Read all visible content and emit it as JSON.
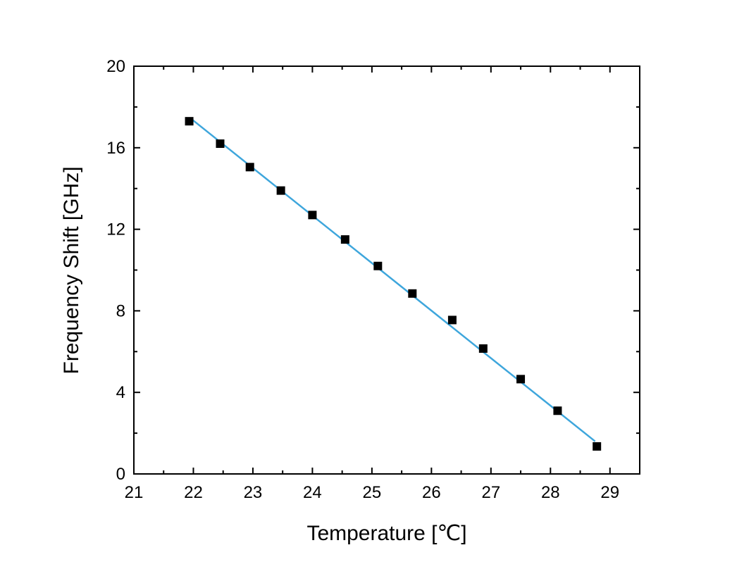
{
  "chart_data": {
    "type": "scatter",
    "title": "",
    "xlabel": "Temperature [℃]",
    "ylabel": "Frequency Shift [GHz]",
    "xlim": [
      21,
      29.5
    ],
    "ylim": [
      0,
      20
    ],
    "xticks": [
      21,
      22,
      23,
      24,
      25,
      26,
      27,
      28,
      29
    ],
    "yticks": [
      0,
      4,
      8,
      12,
      16,
      20
    ],
    "grid": false,
    "legend": "none",
    "series": [
      {
        "marker": "square",
        "color": "#000000",
        "x": [
          21.93,
          22.45,
          22.95,
          23.47,
          24.0,
          24.55,
          25.1,
          25.68,
          26.35,
          26.87,
          27.5,
          28.12,
          28.78
        ],
        "y": [
          17.3,
          16.2,
          15.05,
          13.9,
          12.7,
          11.5,
          10.2,
          8.85,
          7.55,
          6.15,
          4.65,
          3.1,
          1.35
        ]
      }
    ],
    "fit_line": {
      "color": "#3ea6dc",
      "x": [
        21.95,
        28.75
      ],
      "y": [
        17.45,
        1.6
      ]
    }
  }
}
